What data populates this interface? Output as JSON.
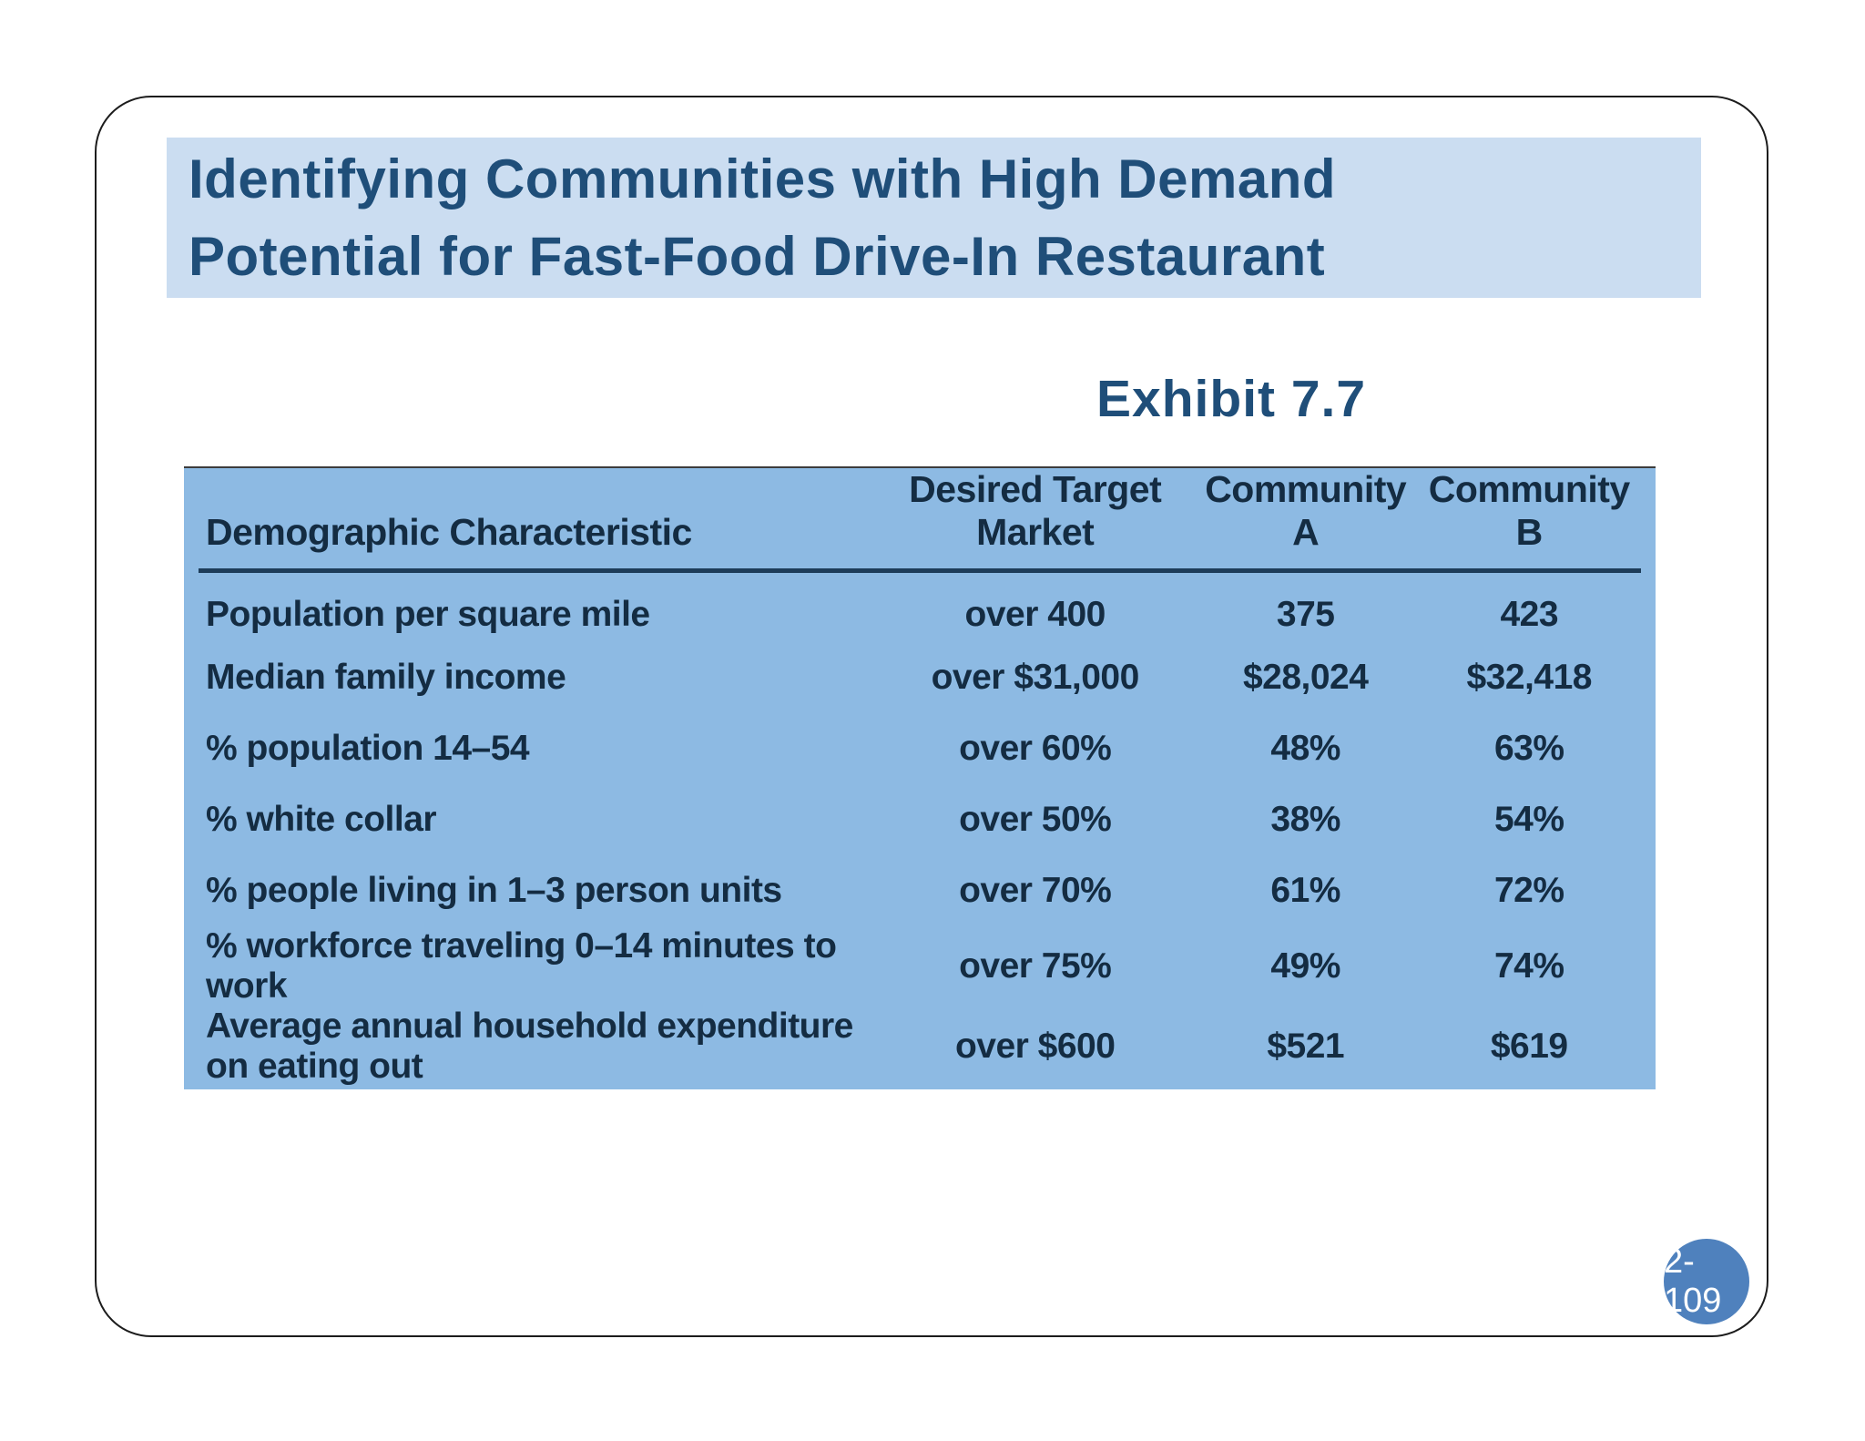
{
  "slide": {
    "title_lines": [
      "Identifying Communities with High Demand",
      "Potential for Fast-Food Drive-In Restaurant"
    ],
    "exhibit_label": "Exhibit 7.7",
    "page_number": "2-109"
  },
  "table": {
    "headers": [
      "Demographic Characteristic",
      "Desired Target Market",
      "Community A",
      "Community B"
    ],
    "rows": [
      [
        "Population per square mile",
        "over 400",
        "375",
        "423"
      ],
      [
        "Median family income",
        "over $31,000",
        "$28,024",
        "$32,418"
      ],
      [
        "% population 14–54",
        "over 60%",
        "48%",
        "63%"
      ],
      [
        "% white collar",
        "over 50%",
        "38%",
        "54%"
      ],
      [
        "% people living in 1–3 person units",
        "over 70%",
        "61%",
        "72%"
      ],
      [
        "% workforce traveling 0–14 minutes to work",
        "over 75%",
        "49%",
        "74%"
      ],
      [
        "Average annual household expenditure on eating out",
        "over $600",
        "$521",
        "$619"
      ]
    ]
  },
  "colors": {
    "banner-bg": "#cbddf1",
    "title-color": "#1f4e79",
    "table-bg": "#8dbae3",
    "table-text": "#142c42",
    "rule-color": "#1d3c59",
    "badge-bg": "#4f81bd",
    "badge-text": "#ffffff"
  }
}
